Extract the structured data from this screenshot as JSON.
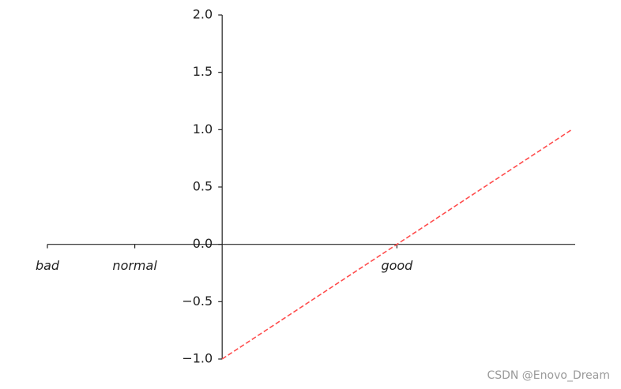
{
  "chart_data": {
    "type": "line",
    "x": [
      0,
      2
    ],
    "series": [
      {
        "values": [
          -1,
          1
        ],
        "color": "#ff4d4d",
        "dashed": true
      }
    ],
    "xlim": [
      -1,
      2.02
    ],
    "ylim": [
      -1,
      2
    ],
    "xticks": [
      {
        "value": -1,
        "label": "bad"
      },
      {
        "value": -0.5,
        "label": "normal"
      },
      {
        "value": 1,
        "label": "good"
      }
    ],
    "yticks": [
      {
        "value": -1,
        "label": "−1.0"
      },
      {
        "value": -0.5,
        "label": "−0.5"
      },
      {
        "value": 0,
        "label": "0.0"
      },
      {
        "value": 0.5,
        "label": "0.5"
      },
      {
        "value": 1,
        "label": "1.0"
      },
      {
        "value": 1.5,
        "label": "1.5"
      },
      {
        "value": 2,
        "label": "2.0"
      }
    ],
    "grid": false,
    "watermark": "CSDN @Enovo_Dream"
  }
}
